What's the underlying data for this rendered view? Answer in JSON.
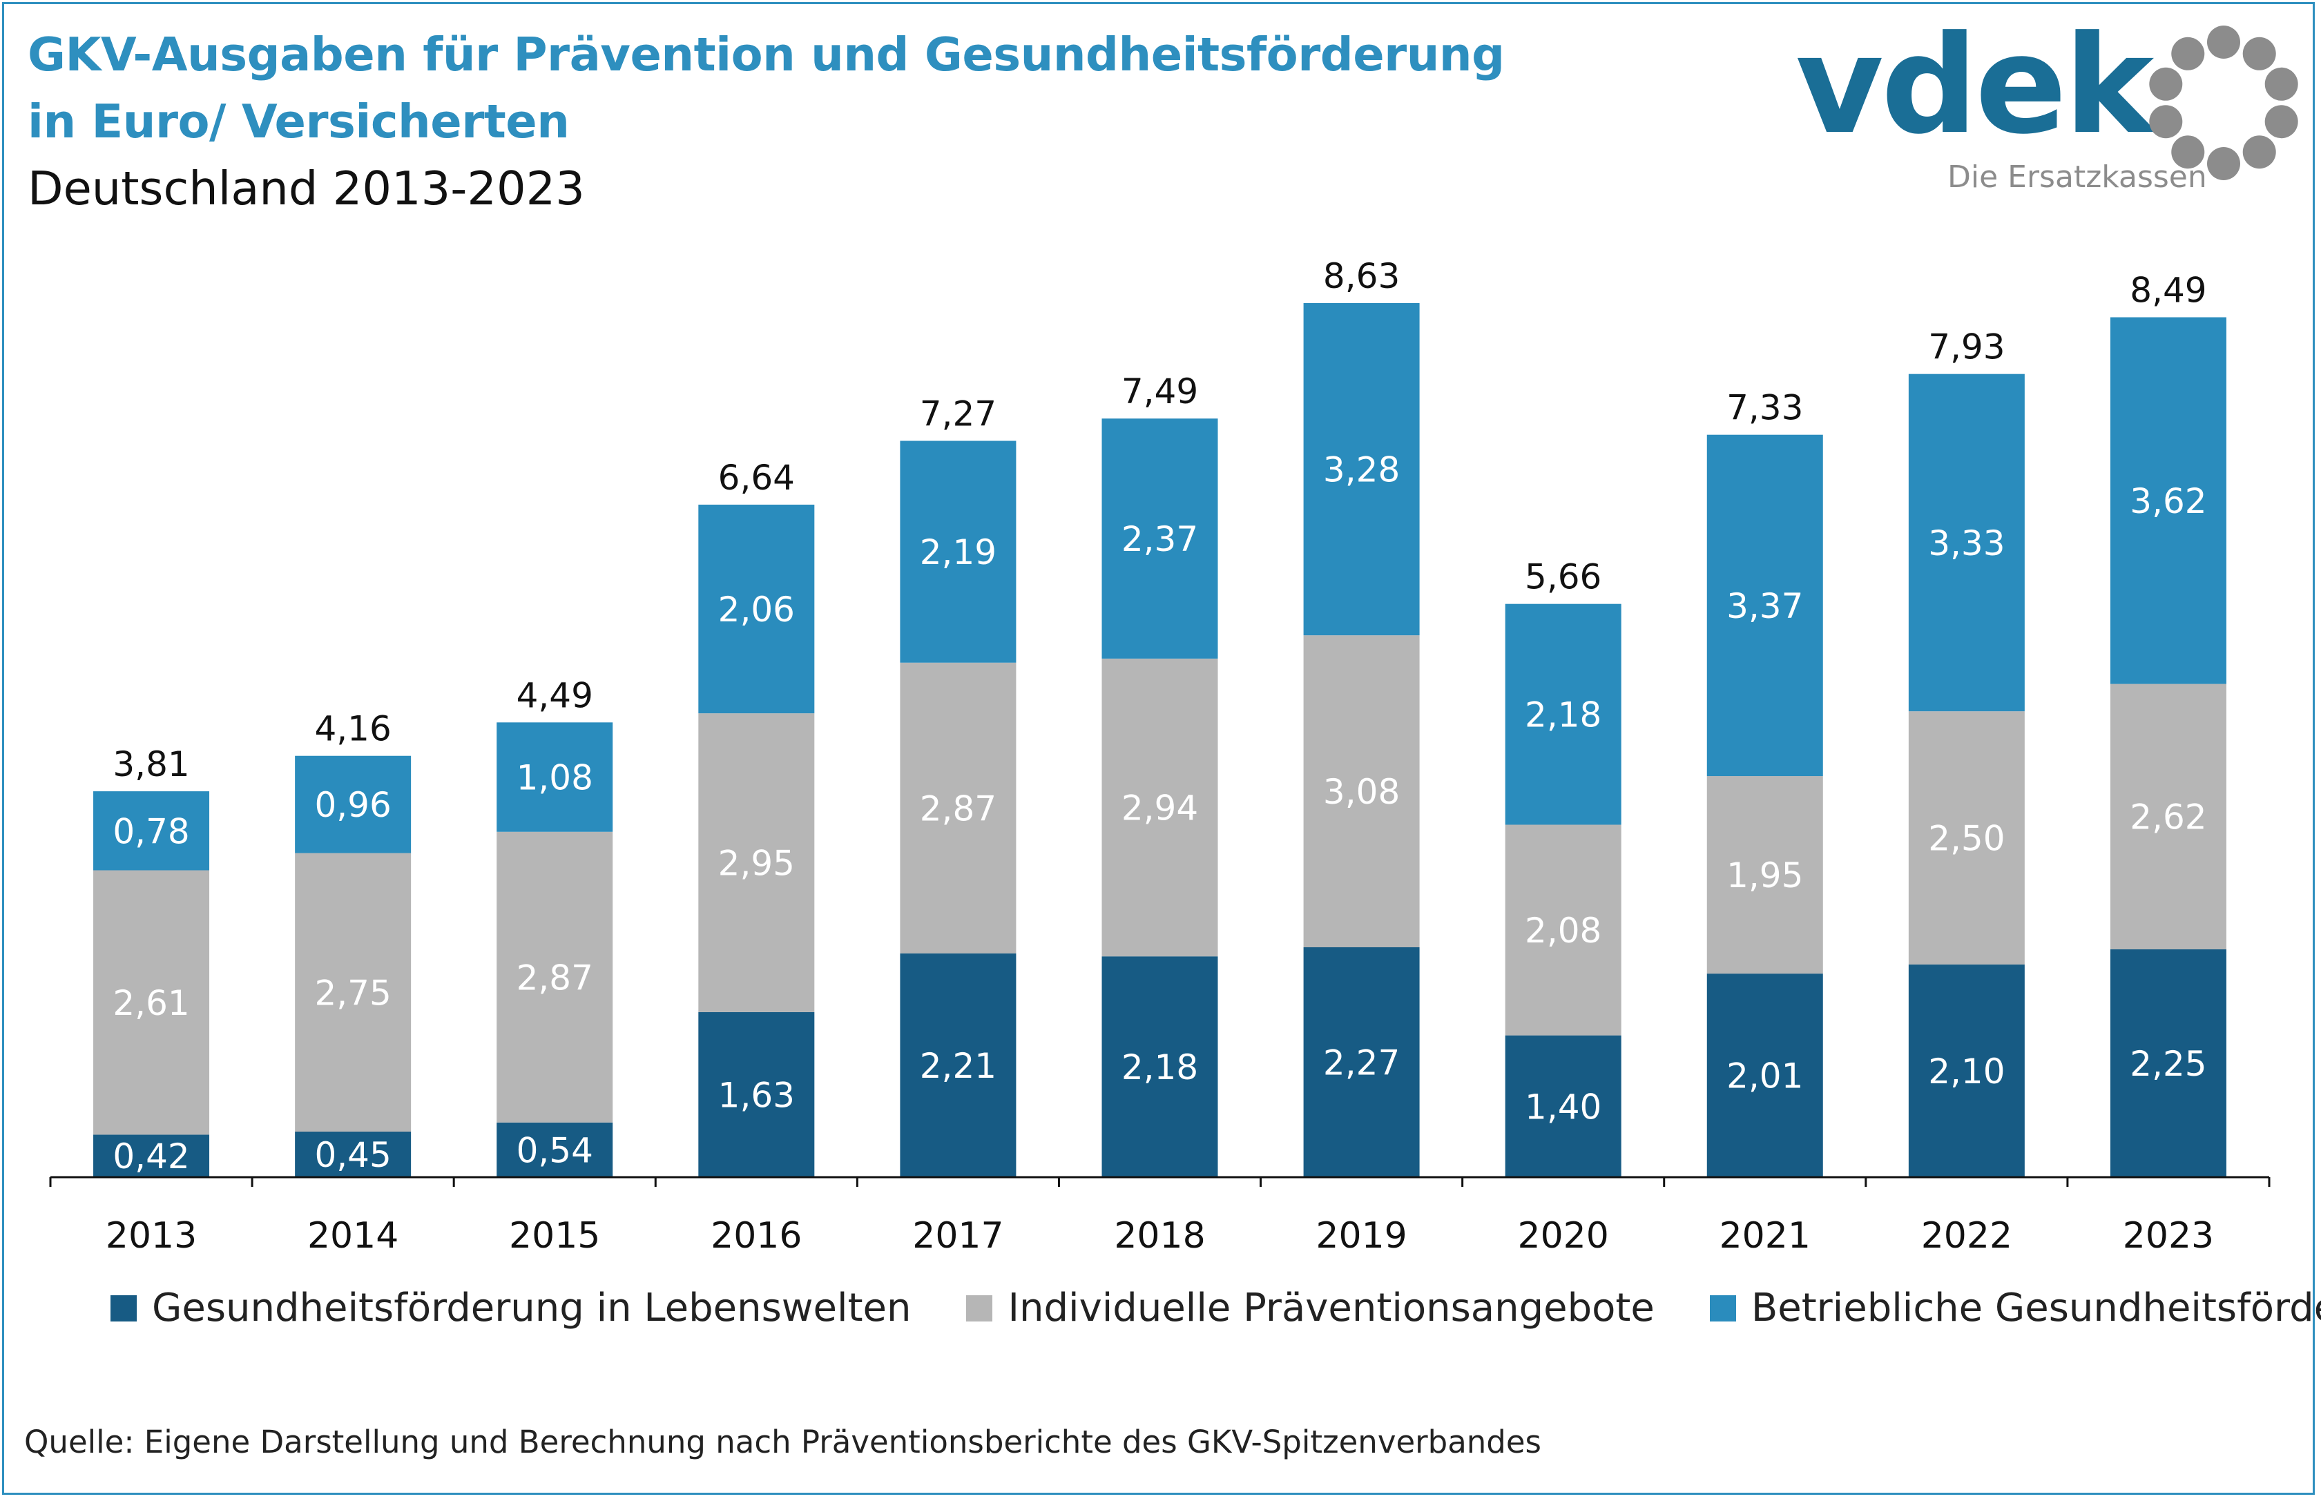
{
  "header": {
    "title_line1": "GKV-Ausgaben für Prävention und Gesundheitsförderung",
    "title_line2": "in Euro/ Versicherten",
    "subtitle": "Deutschland 2013-2023"
  },
  "logo": {
    "word": "vdek",
    "tagline": "Die Ersatzkassen",
    "colors": {
      "word": "#1a6e96",
      "seal": "#8c8c8c"
    }
  },
  "chart_data": {
    "type": "bar",
    "stacked": true,
    "categories": [
      "2013",
      "2014",
      "2015",
      "2016",
      "2017",
      "2018",
      "2019",
      "2020",
      "2021",
      "2022",
      "2023"
    ],
    "series": [
      {
        "name": "Gesundheitsförderung in Lebenswelten",
        "color": "#175b84",
        "values": [
          0.42,
          0.45,
          0.54,
          1.63,
          2.21,
          2.18,
          2.27,
          1.4,
          2.01,
          2.1,
          2.25
        ],
        "labels": [
          "0,42",
          "0,45",
          "0,54",
          "1,63",
          "2,21",
          "2,18",
          "2,27",
          "1,40",
          "2,01",
          "2,10",
          "2,25"
        ]
      },
      {
        "name": "Individuelle Präventionsangebote",
        "color": "#b6b6b6",
        "values": [
          2.61,
          2.75,
          2.87,
          2.95,
          2.87,
          2.94,
          3.08,
          2.08,
          1.95,
          2.5,
          2.62
        ],
        "labels": [
          "2,61",
          "2,75",
          "2,87",
          "2,95",
          "2,87",
          "2,94",
          "3,08",
          "2,08",
          "1,95",
          "2,50",
          "2,62"
        ]
      },
      {
        "name": "Betriebliche Gesundheitsförderung",
        "color": "#2a8cbd",
        "values": [
          0.78,
          0.96,
          1.08,
          2.06,
          2.19,
          2.37,
          3.28,
          2.18,
          3.37,
          3.33,
          3.62
        ],
        "labels": [
          "0,78",
          "0,96",
          "1,08",
          "2,06",
          "2,19",
          "2,37",
          "3,28",
          "2,18",
          "3,37",
          "3,33",
          "3,62"
        ]
      }
    ],
    "totals": [
      3.81,
      4.16,
      4.49,
      6.64,
      7.27,
      7.49,
      8.63,
      5.66,
      7.33,
      7.93,
      8.49
    ],
    "total_labels": [
      "3,81",
      "4,16",
      "4,49",
      "6,64",
      "7,27",
      "7,49",
      "8,63",
      "5,66",
      "7,33",
      "7,93",
      "8,49"
    ],
    "ylim": [
      0,
      9.5
    ],
    "grid": false,
    "legend_position": "bottom"
  },
  "source": "Quelle: Eigene Darstellung und Berechnung nach Präventionsberichte des GKV-Spitzenverbandes"
}
